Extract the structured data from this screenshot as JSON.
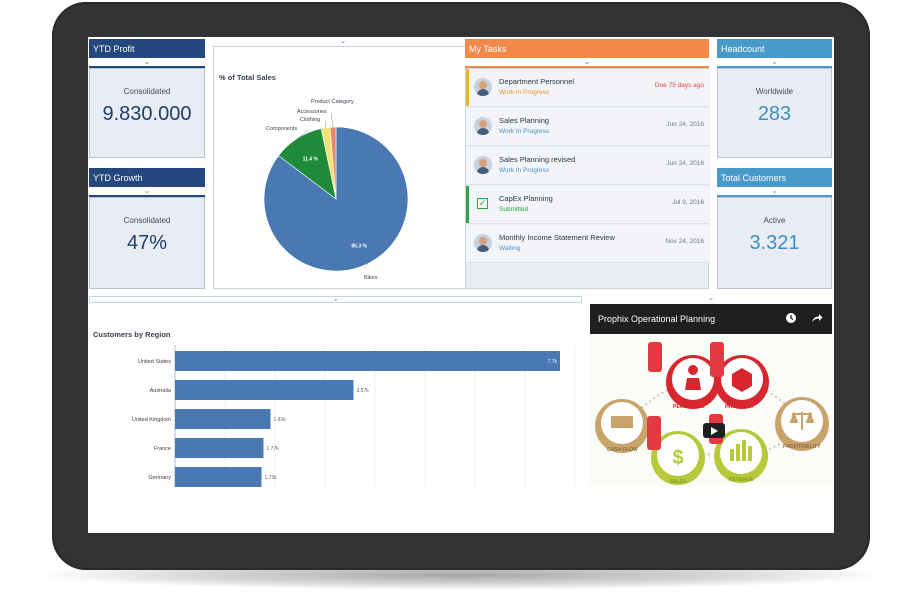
{
  "ytd_profit": {
    "title": "YTD Profit",
    "label": "Consolidated",
    "value": "9.830.000"
  },
  "ytd_growth": {
    "title": "YTD Growth",
    "label": "Consolidated",
    "value": "47%"
  },
  "headcount": {
    "title": "Headcount",
    "label": "Worldwide",
    "value": "283"
  },
  "total_customers": {
    "title": "Total Customers",
    "label": "Active",
    "value": "3.321"
  },
  "pie": {
    "title": "% of Total Sales",
    "legend_title": "Product Category",
    "slices": [
      {
        "name": "Bikes",
        "value": 85.3,
        "label": "85.3 %",
        "color": "#4a78b2"
      },
      {
        "name": "Components",
        "value": 11.4,
        "label": "11.4 %",
        "color": "#1e8a3a"
      },
      {
        "name": "Clothing",
        "value": 2.0,
        "label": "",
        "color": "#f2e27a"
      },
      {
        "name": "Accessories",
        "value": 1.3,
        "label": "",
        "color": "#e8866a"
      }
    ]
  },
  "tasks": {
    "title": "My Tasks",
    "items": [
      {
        "name": "Department Personnel",
        "status": "Work In Progress",
        "date": "Due 75 days ago",
        "bar_color": "#f0b23a",
        "status_color": "#e9912e",
        "date_color": "#e0433a",
        "icon": "avatar"
      },
      {
        "name": "Sales Planning",
        "status": "Work In Progress",
        "date": "Jun 24, 2016",
        "bar_color": "",
        "status_color": "#4a8fc4",
        "date_color": "#6f7782",
        "icon": "avatar"
      },
      {
        "name": "Sales Planning revised",
        "status": "Work In Progress",
        "date": "Jun 24, 2016",
        "bar_color": "",
        "status_color": "#4a8fc4",
        "date_color": "#6f7782",
        "icon": "avatar"
      },
      {
        "name": "CapEx Planning",
        "status": "Submitted",
        "date": "Jul 9, 2016",
        "bar_color": "#2ea34a",
        "status_color": "#2ea34a",
        "date_color": "#6f7782",
        "icon": "check"
      },
      {
        "name": "Monthly Income Statement Review",
        "status": "Waiting",
        "date": "Nov 24, 2016",
        "bar_color": "",
        "status_color": "#4a8fc4",
        "date_color": "#6f7782",
        "icon": "avatar"
      }
    ]
  },
  "chart_data": {
    "type": "bar",
    "title": "Customers by Region",
    "orientation": "horizontal",
    "categories": [
      "United States",
      "Australia",
      "United Kingdom",
      "France",
      "Germany"
    ],
    "values": [
      7.7,
      3.57,
      1.91,
      1.77,
      1.73
    ],
    "labels": [
      "7.7k",
      "3.57k",
      "1.91k",
      "1.77k",
      "1.73k"
    ],
    "unit": "k",
    "xlim": [
      0,
      8
    ],
    "color": "#4a78b2",
    "grid": true
  },
  "video": {
    "title": "Prophix Operational Planning",
    "labels": {
      "personnel": "PERSONNEL",
      "inventory": "INVENTORY",
      "cashflow": "CASH-FLOW",
      "profitability": "PROFITABILITY",
      "sales": "SALES",
      "revenue": "REVENUE"
    }
  },
  "icons": {
    "clock": "clock-icon",
    "share": "share-icon",
    "play": "play-icon",
    "chevron": "chevron-down-icon"
  }
}
